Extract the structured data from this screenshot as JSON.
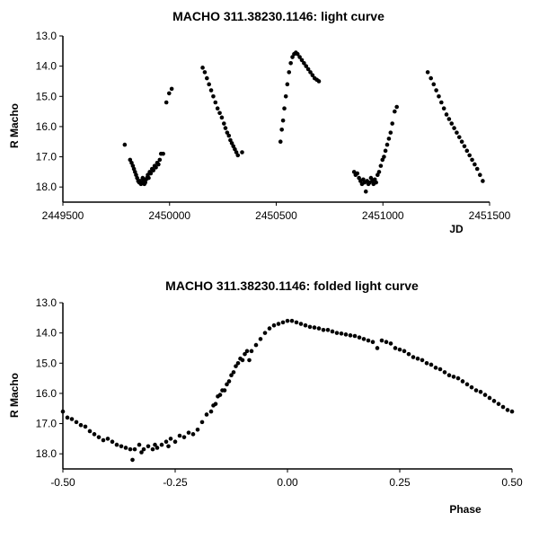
{
  "chart_data": [
    {
      "type": "scatter",
      "title": "MACHO 311.38230.1146: light curve",
      "xlabel": "JD",
      "ylabel": "R Macho",
      "xlim": [
        2449500,
        2451500
      ],
      "ylim": [
        13.0,
        18.5
      ],
      "y_inverted": true,
      "grid": false,
      "x_tick_labels": [
        "2449500",
        "2450000",
        "2450500",
        "2451000",
        "2451500"
      ],
      "y_tick_labels": [
        "13.0",
        "14.0",
        "15.0",
        "16.0",
        "17.0",
        "18.0"
      ],
      "series": [
        {
          "color": "#000000",
          "x": [
            2449790,
            2449815,
            2449822,
            2449828,
            2449833,
            2449838,
            2449843,
            2449848,
            2449853,
            2449858,
            2449862,
            2449866,
            2449870,
            2449874,
            2449878,
            2449882,
            2449886,
            2449890,
            2449894,
            2449898,
            2449902,
            2449907,
            2449912,
            2449918,
            2449924,
            2449930,
            2449936,
            2449942,
            2449948,
            2449954,
            2449960,
            2449970,
            2449985,
            2449998,
            2450010,
            2450155,
            2450165,
            2450175,
            2450185,
            2450195,
            2450205,
            2450215,
            2450225,
            2450235,
            2450245,
            2450255,
            2450262,
            2450270,
            2450278,
            2450285,
            2450292,
            2450299,
            2450306,
            2450313,
            2450320,
            2450340,
            2450520,
            2450526,
            2450532,
            2450538,
            2450545,
            2450552,
            2450560,
            2450568,
            2450576,
            2450584,
            2450592,
            2450600,
            2450610,
            2450620,
            2450630,
            2450640,
            2450650,
            2450660,
            2450670,
            2450680,
            2450690,
            2450700,
            2450865,
            2450872,
            2450880,
            2450888,
            2450895,
            2450902,
            2450908,
            2450914,
            2450920,
            2450926,
            2450932,
            2450938,
            2450944,
            2450950,
            2450956,
            2450962,
            2450968,
            2450975,
            2450982,
            2450990,
            2450998,
            2451005,
            2451012,
            2451020,
            2451028,
            2451036,
            2451044,
            2451055,
            2451065,
            2451210,
            2451225,
            2451238,
            2451250,
            2451262,
            2451274,
            2451286,
            2451298,
            2451310,
            2451322,
            2451334,
            2451346,
            2451358,
            2451370,
            2451382,
            2451394,
            2451406,
            2451418,
            2451430,
            2451442,
            2451455,
            2451468
          ],
          "y": [
            16.6,
            17.1,
            17.2,
            17.3,
            17.4,
            17.5,
            17.6,
            17.7,
            17.8,
            17.85,
            17.8,
            17.9,
            17.85,
            17.7,
            17.8,
            17.9,
            17.85,
            17.75,
            17.7,
            17.6,
            17.7,
            17.5,
            17.55,
            17.4,
            17.45,
            17.3,
            17.35,
            17.2,
            17.25,
            17.1,
            16.9,
            16.9,
            15.2,
            14.9,
            14.75,
            14.05,
            14.2,
            14.4,
            14.6,
            14.8,
            15.0,
            15.2,
            15.4,
            15.55,
            15.7,
            15.9,
            16.05,
            16.2,
            16.3,
            16.45,
            16.55,
            16.65,
            16.75,
            16.85,
            16.95,
            16.85,
            16.5,
            16.1,
            15.8,
            15.4,
            15.0,
            14.6,
            14.2,
            13.9,
            13.7,
            13.6,
            13.55,
            13.6,
            13.7,
            13.8,
            13.9,
            14.0,
            14.1,
            14.2,
            14.3,
            14.4,
            14.45,
            14.5,
            17.5,
            17.6,
            17.55,
            17.7,
            17.8,
            17.9,
            17.75,
            17.85,
            18.15,
            17.8,
            17.9,
            17.85,
            17.7,
            17.8,
            17.9,
            17.75,
            17.85,
            17.6,
            17.5,
            17.3,
            17.1,
            17.0,
            16.8,
            16.6,
            16.4,
            16.2,
            15.9,
            15.5,
            15.35,
            14.2,
            14.4,
            14.6,
            14.8,
            15.0,
            15.2,
            15.4,
            15.6,
            15.75,
            15.9,
            16.05,
            16.2,
            16.35,
            16.5,
            16.65,
            16.8,
            16.95,
            17.1,
            17.25,
            17.4,
            17.6,
            17.8
          ]
        }
      ]
    },
    {
      "type": "scatter",
      "title": "MACHO 311.38230.1146: folded light curve",
      "xlabel": "Phase",
      "ylabel": "R Macho",
      "xlim": [
        -0.5,
        0.5
      ],
      "ylim": [
        13.0,
        18.5
      ],
      "y_inverted": true,
      "grid": false,
      "x_tick_labels": [
        "-0.50",
        "-0.25",
        "0.00",
        "0.25",
        "0.50"
      ],
      "y_tick_labels": [
        "13.0",
        "14.0",
        "15.0",
        "16.0",
        "17.0",
        "18.0"
      ],
      "series": [
        {
          "color": "#000000",
          "x": [
            -0.5,
            -0.49,
            -0.48,
            -0.47,
            -0.46,
            -0.45,
            -0.44,
            -0.43,
            -0.42,
            -0.41,
            -0.4,
            -0.39,
            -0.38,
            -0.37,
            -0.36,
            -0.35,
            -0.345,
            -0.34,
            -0.33,
            -0.325,
            -0.32,
            -0.31,
            -0.3,
            -0.295,
            -0.29,
            -0.28,
            -0.27,
            -0.265,
            -0.26,
            -0.25,
            -0.24,
            -0.23,
            -0.22,
            -0.21,
            -0.2,
            -0.19,
            -0.18,
            -0.17,
            -0.165,
            -0.16,
            -0.155,
            -0.15,
            -0.145,
            -0.14,
            -0.135,
            -0.13,
            -0.125,
            -0.12,
            -0.115,
            -0.11,
            -0.105,
            -0.1,
            -0.095,
            -0.09,
            -0.085,
            -0.08,
            -0.07,
            -0.06,
            -0.05,
            -0.04,
            -0.03,
            -0.02,
            -0.01,
            0.0,
            0.01,
            0.02,
            0.03,
            0.04,
            0.05,
            0.06,
            0.07,
            0.08,
            0.09,
            0.1,
            0.11,
            0.12,
            0.13,
            0.14,
            0.15,
            0.16,
            0.17,
            0.18,
            0.19,
            0.2,
            0.21,
            0.22,
            0.23,
            0.24,
            0.25,
            0.26,
            0.27,
            0.28,
            0.29,
            0.3,
            0.31,
            0.32,
            0.33,
            0.34,
            0.35,
            0.36,
            0.37,
            0.38,
            0.39,
            0.4,
            0.41,
            0.42,
            0.43,
            0.44,
            0.45,
            0.46,
            0.47,
            0.48,
            0.49,
            0.5
          ],
          "y": [
            16.6,
            16.8,
            16.85,
            16.95,
            17.05,
            17.1,
            17.25,
            17.35,
            17.45,
            17.55,
            17.5,
            17.6,
            17.7,
            17.75,
            17.8,
            17.85,
            18.2,
            17.85,
            17.7,
            17.95,
            17.85,
            17.75,
            17.85,
            17.7,
            17.8,
            17.7,
            17.6,
            17.75,
            17.5,
            17.6,
            17.4,
            17.45,
            17.3,
            17.35,
            17.2,
            16.95,
            16.7,
            16.6,
            16.4,
            16.35,
            16.1,
            16.05,
            15.9,
            15.9,
            15.7,
            15.6,
            15.4,
            15.3,
            15.1,
            15.0,
            14.85,
            14.9,
            14.7,
            14.6,
            14.9,
            14.6,
            14.4,
            14.2,
            14.0,
            13.85,
            13.75,
            13.7,
            13.65,
            13.6,
            13.6,
            13.65,
            13.7,
            13.75,
            13.8,
            13.82,
            13.85,
            13.9,
            13.9,
            13.95,
            14.0,
            14.02,
            14.05,
            14.08,
            14.1,
            14.15,
            14.2,
            14.25,
            14.3,
            14.5,
            14.25,
            14.3,
            14.35,
            14.5,
            14.55,
            14.6,
            14.7,
            14.8,
            14.85,
            14.9,
            15.0,
            15.05,
            15.15,
            15.2,
            15.3,
            15.4,
            15.45,
            15.5,
            15.6,
            15.7,
            15.8,
            15.9,
            15.95,
            16.05,
            16.15,
            16.25,
            16.35,
            16.45,
            16.55,
            16.6
          ]
        }
      ]
    }
  ]
}
